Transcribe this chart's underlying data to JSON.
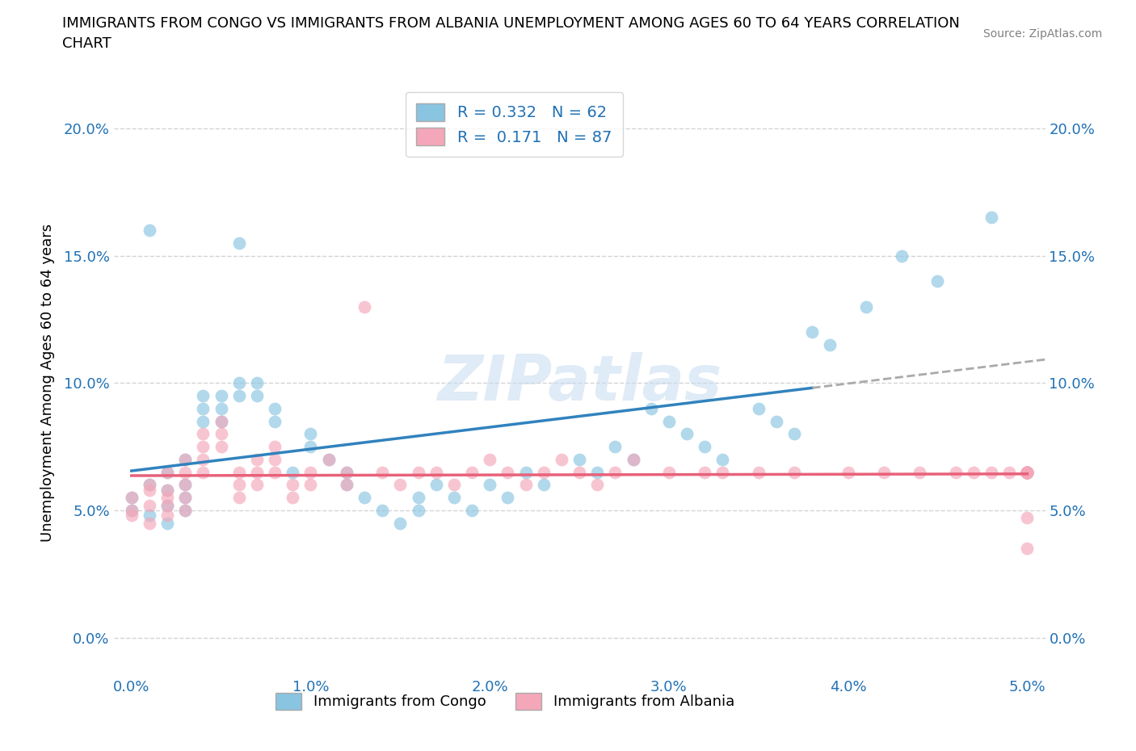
{
  "title_line1": "IMMIGRANTS FROM CONGO VS IMMIGRANTS FROM ALBANIA UNEMPLOYMENT AMONG AGES 60 TO 64 YEARS CORRELATION",
  "title_line2": "CHART",
  "source_text": "Source: ZipAtlas.com",
  "ylabel": "Unemployment Among Ages 60 to 64 years",
  "xlim": [
    -0.001,
    0.051
  ],
  "ylim": [
    -0.015,
    0.215
  ],
  "xticks": [
    0.0,
    0.01,
    0.02,
    0.03,
    0.04,
    0.05
  ],
  "yticks": [
    0.0,
    0.05,
    0.1,
    0.15,
    0.2
  ],
  "xtick_labels": [
    "0.0%",
    "1.0%",
    "2.0%",
    "3.0%",
    "4.0%",
    "5.0%"
  ],
  "ytick_labels": [
    "0.0%",
    "5.0%",
    "10.0%",
    "15.0%",
    "20.0%"
  ],
  "congo_color": "#89c4e1",
  "albania_color": "#f4a7b9",
  "congo_line_color": "#3182bd",
  "albania_line_color": "#e8617a",
  "legend_r_congo": "0.332",
  "legend_n_congo": "62",
  "legend_r_albania": "0.171",
  "legend_n_albania": "87",
  "legend_label_color": "#2171b5",
  "watermark_color": "#c6dbef",
  "background_color": "#ffffff",
  "grid_color": "#d0d0d0",
  "title_fontsize": 13,
  "tick_fontsize": 13,
  "ylabel_fontsize": 13,
  "congo_scatter_x": [
    0.0,
    0.0,
    0.001,
    0.001,
    0.001,
    0.002,
    0.002,
    0.002,
    0.002,
    0.003,
    0.003,
    0.003,
    0.003,
    0.004,
    0.004,
    0.004,
    0.005,
    0.005,
    0.005,
    0.006,
    0.006,
    0.006,
    0.007,
    0.007,
    0.008,
    0.008,
    0.009,
    0.01,
    0.01,
    0.011,
    0.012,
    0.012,
    0.013,
    0.014,
    0.015,
    0.016,
    0.016,
    0.017,
    0.018,
    0.019,
    0.02,
    0.021,
    0.022,
    0.023,
    0.025,
    0.026,
    0.027,
    0.028,
    0.029,
    0.03,
    0.031,
    0.032,
    0.033,
    0.035,
    0.036,
    0.037,
    0.038,
    0.039,
    0.041,
    0.043,
    0.045,
    0.048
  ],
  "congo_scatter_y": [
    0.055,
    0.05,
    0.16,
    0.06,
    0.048,
    0.065,
    0.058,
    0.052,
    0.045,
    0.07,
    0.06,
    0.055,
    0.05,
    0.095,
    0.09,
    0.085,
    0.095,
    0.09,
    0.085,
    0.155,
    0.1,
    0.095,
    0.1,
    0.095,
    0.09,
    0.085,
    0.065,
    0.08,
    0.075,
    0.07,
    0.065,
    0.06,
    0.055,
    0.05,
    0.045,
    0.055,
    0.05,
    0.06,
    0.055,
    0.05,
    0.06,
    0.055,
    0.065,
    0.06,
    0.07,
    0.065,
    0.075,
    0.07,
    0.09,
    0.085,
    0.08,
    0.075,
    0.07,
    0.09,
    0.085,
    0.08,
    0.12,
    0.115,
    0.13,
    0.15,
    0.14,
    0.165
  ],
  "albania_scatter_x": [
    0.0,
    0.0,
    0.0,
    0.001,
    0.001,
    0.001,
    0.001,
    0.002,
    0.002,
    0.002,
    0.002,
    0.002,
    0.003,
    0.003,
    0.003,
    0.003,
    0.003,
    0.004,
    0.004,
    0.004,
    0.004,
    0.005,
    0.005,
    0.005,
    0.006,
    0.006,
    0.006,
    0.007,
    0.007,
    0.007,
    0.008,
    0.008,
    0.008,
    0.009,
    0.009,
    0.01,
    0.01,
    0.011,
    0.012,
    0.012,
    0.013,
    0.014,
    0.015,
    0.016,
    0.017,
    0.018,
    0.019,
    0.02,
    0.021,
    0.022,
    0.023,
    0.024,
    0.025,
    0.026,
    0.027,
    0.028,
    0.03,
    0.032,
    0.033,
    0.035,
    0.037,
    0.04,
    0.042,
    0.044,
    0.046,
    0.047,
    0.048,
    0.049,
    0.05,
    0.05,
    0.05,
    0.05,
    0.05,
    0.05,
    0.05,
    0.05,
    0.05,
    0.05,
    0.05,
    0.05,
    0.05,
    0.05,
    0.05,
    0.05,
    0.05,
    0.05,
    0.05
  ],
  "albania_scatter_y": [
    0.05,
    0.055,
    0.048,
    0.058,
    0.052,
    0.045,
    0.06,
    0.065,
    0.058,
    0.052,
    0.048,
    0.055,
    0.07,
    0.065,
    0.06,
    0.055,
    0.05,
    0.08,
    0.075,
    0.07,
    0.065,
    0.085,
    0.08,
    0.075,
    0.065,
    0.06,
    0.055,
    0.07,
    0.065,
    0.06,
    0.075,
    0.07,
    0.065,
    0.06,
    0.055,
    0.065,
    0.06,
    0.07,
    0.065,
    0.06,
    0.13,
    0.065,
    0.06,
    0.065,
    0.065,
    0.06,
    0.065,
    0.07,
    0.065,
    0.06,
    0.065,
    0.07,
    0.065,
    0.06,
    0.065,
    0.07,
    0.065,
    0.065,
    0.065,
    0.065,
    0.065,
    0.065,
    0.065,
    0.065,
    0.065,
    0.065,
    0.065,
    0.065,
    0.065,
    0.065,
    0.065,
    0.065,
    0.065,
    0.065,
    0.065,
    0.065,
    0.065,
    0.065,
    0.047,
    0.065,
    0.065,
    0.065,
    0.035,
    0.065,
    0.065,
    0.065,
    0.065
  ]
}
